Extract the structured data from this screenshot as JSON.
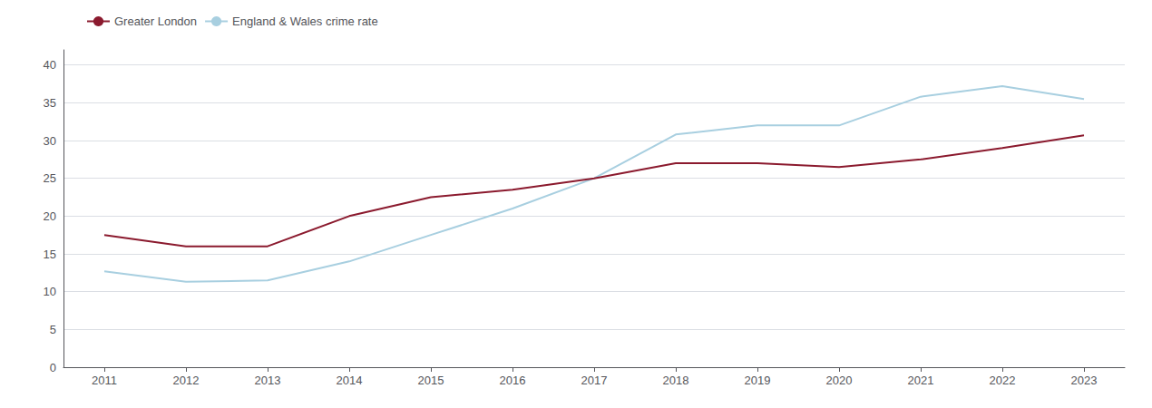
{
  "chart_data": {
    "type": "line",
    "x": [
      2011,
      2012,
      2013,
      2014,
      2015,
      2016,
      2017,
      2018,
      2019,
      2020,
      2021,
      2022,
      2023
    ],
    "series": [
      {
        "name": "Greater London",
        "color": "#8b1a2e",
        "values": [
          17.5,
          16.0,
          16.0,
          20.0,
          22.5,
          23.5,
          25.0,
          27.0,
          27.0,
          26.5,
          27.5,
          29.0,
          30.7
        ]
      },
      {
        "name": "England & Wales crime rate",
        "color": "#a8cfe0",
        "values": [
          12.7,
          11.3,
          11.5,
          14.0,
          17.5,
          21.0,
          25.0,
          30.8,
          32.0,
          32.0,
          35.8,
          37.2,
          35.5
        ]
      }
    ],
    "xlim": [
      2010.5,
      2023.5
    ],
    "xticks": [
      2011,
      2012,
      2013,
      2014,
      2015,
      2016,
      2017,
      2018,
      2019,
      2020,
      2021,
      2022,
      2023
    ],
    "ylim": [
      0,
      42
    ],
    "yticks": [
      0,
      5,
      10,
      15,
      20,
      25,
      30,
      35,
      40
    ],
    "grid": true,
    "legend": "upper left"
  }
}
